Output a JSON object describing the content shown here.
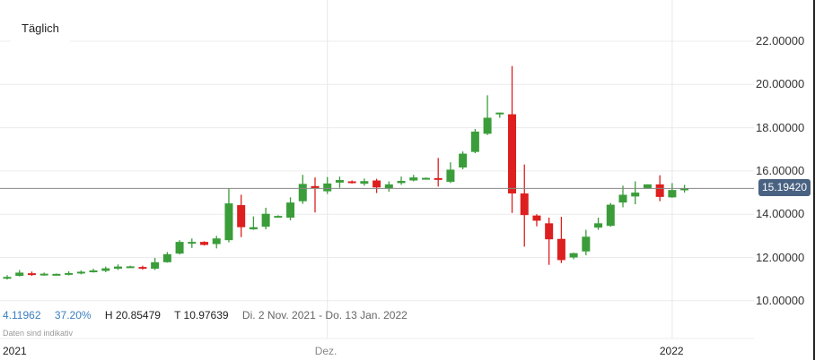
{
  "header": {
    "interval_tab": "Täglich"
  },
  "stats": {
    "change": "4.11962",
    "change_pct": "37.20%",
    "high": "H 20.85479",
    "low": "T 10.97639",
    "range": "Di. 2 Nov. 2021 - Do. 13 Jan. 2022",
    "disclaimer": "Daten sind indikativ"
  },
  "current_price": "15.19420",
  "colors": {
    "up": "#3a9d3a",
    "down": "#dd1f1f",
    "price_tag": "#4a6282",
    "stats_blue": "#3a7fc1"
  },
  "chart_data": {
    "type": "candlestick",
    "title": "",
    "xlabel": "",
    "ylabel": "",
    "ylim": [
      9.2,
      23
    ],
    "grid": true,
    "y_ticks": [
      "22.00000",
      "20.00000",
      "18.00000",
      "16.00000",
      "14.00000",
      "12.00000",
      "10.00000"
    ],
    "y_tick_values": [
      22,
      20,
      18,
      16,
      14,
      12,
      10
    ],
    "x_ticks": [
      {
        "label": "2021",
        "index": 0
      },
      {
        "label": "Dez.",
        "index": 26
      },
      {
        "label": "2022",
        "index": 54
      }
    ],
    "current_price": 15.1942,
    "period_high": 20.85479,
    "period_low": 10.97639,
    "candles": [
      {
        "o": 11.05,
        "c": 11.1,
        "h": 11.18,
        "l": 10.98
      },
      {
        "o": 11.15,
        "c": 11.3,
        "h": 11.42,
        "l": 11.12
      },
      {
        "o": 11.27,
        "c": 11.22,
        "h": 11.35,
        "l": 11.15
      },
      {
        "o": 11.2,
        "c": 11.25,
        "h": 11.3,
        "l": 11.16
      },
      {
        "o": 11.22,
        "c": 11.24,
        "h": 11.26,
        "l": 11.2
      },
      {
        "o": 11.22,
        "c": 11.28,
        "h": 11.36,
        "l": 11.17
      },
      {
        "o": 11.26,
        "c": 11.34,
        "h": 11.4,
        "l": 11.22
      },
      {
        "o": 11.33,
        "c": 11.4,
        "h": 11.48,
        "l": 11.3
      },
      {
        "o": 11.38,
        "c": 11.5,
        "h": 11.58,
        "l": 11.32
      },
      {
        "o": 11.48,
        "c": 11.58,
        "h": 11.68,
        "l": 11.42
      },
      {
        "o": 11.56,
        "c": 11.59,
        "h": 11.62,
        "l": 11.54
      },
      {
        "o": 11.56,
        "c": 11.5,
        "h": 11.62,
        "l": 11.44
      },
      {
        "o": 11.48,
        "c": 11.78,
        "h": 11.98,
        "l": 11.42
      },
      {
        "o": 11.78,
        "c": 12.15,
        "h": 12.25,
        "l": 11.76
      },
      {
        "o": 12.18,
        "c": 12.72,
        "h": 12.8,
        "l": 12.14
      },
      {
        "o": 12.7,
        "c": 12.72,
        "h": 12.88,
        "l": 12.44
      },
      {
        "o": 12.72,
        "c": 12.58,
        "h": 12.75,
        "l": 12.55
      },
      {
        "o": 12.62,
        "c": 12.88,
        "h": 13.0,
        "l": 12.42
      },
      {
        "o": 12.8,
        "c": 14.5,
        "h": 15.2,
        "l": 12.7
      },
      {
        "o": 14.42,
        "c": 13.4,
        "h": 14.9,
        "l": 12.94
      },
      {
        "o": 13.3,
        "c": 13.4,
        "h": 13.9,
        "l": 13.28
      },
      {
        "o": 13.42,
        "c": 14.02,
        "h": 14.3,
        "l": 13.3
      },
      {
        "o": 13.9,
        "c": 13.92,
        "h": 13.95,
        "l": 13.88
      },
      {
        "o": 13.84,
        "c": 14.54,
        "h": 14.78,
        "l": 13.72
      },
      {
        "o": 14.6,
        "c": 15.4,
        "h": 15.82,
        "l": 14.48
      },
      {
        "o": 15.3,
        "c": 15.2,
        "h": 15.7,
        "l": 14.08
      },
      {
        "o": 15.06,
        "c": 15.42,
        "h": 15.72,
        "l": 14.94
      },
      {
        "o": 15.46,
        "c": 15.58,
        "h": 15.74,
        "l": 15.22
      },
      {
        "o": 15.52,
        "c": 15.48,
        "h": 15.56,
        "l": 15.42
      },
      {
        "o": 15.41,
        "c": 15.53,
        "h": 15.65,
        "l": 15.32
      },
      {
        "o": 15.56,
        "c": 15.24,
        "h": 15.64,
        "l": 14.98
      },
      {
        "o": 15.18,
        "c": 15.38,
        "h": 15.52,
        "l": 15.04
      },
      {
        "o": 15.44,
        "c": 15.54,
        "h": 15.74,
        "l": 15.36
      },
      {
        "o": 15.56,
        "c": 15.7,
        "h": 15.82,
        "l": 15.52
      },
      {
        "o": 15.66,
        "c": 15.68,
        "h": 15.7,
        "l": 15.64
      },
      {
        "o": 15.67,
        "c": 15.65,
        "h": 16.6,
        "l": 15.28
      },
      {
        "o": 15.5,
        "c": 16.06,
        "h": 16.4,
        "l": 15.44
      },
      {
        "o": 16.16,
        "c": 16.8,
        "h": 16.9,
        "l": 16.08
      },
      {
        "o": 16.88,
        "c": 17.82,
        "h": 17.94,
        "l": 16.82
      },
      {
        "o": 17.72,
        "c": 18.46,
        "h": 19.5,
        "l": 17.66
      },
      {
        "o": 18.66,
        "c": 18.7,
        "h": 18.7,
        "l": 18.46
      },
      {
        "o": 18.62,
        "c": 14.96,
        "h": 20.85,
        "l": 14.06
      },
      {
        "o": 14.96,
        "c": 13.96,
        "h": 16.3,
        "l": 12.5
      },
      {
        "o": 13.94,
        "c": 13.7,
        "h": 14.0,
        "l": 13.44
      },
      {
        "o": 13.58,
        "c": 12.84,
        "h": 13.84,
        "l": 11.66
      },
      {
        "o": 12.86,
        "c": 11.88,
        "h": 13.88,
        "l": 11.74
      },
      {
        "o": 12.0,
        "c": 12.2,
        "h": 12.22,
        "l": 11.92
      },
      {
        "o": 12.28,
        "c": 12.96,
        "h": 13.28,
        "l": 12.1
      },
      {
        "o": 13.38,
        "c": 13.58,
        "h": 13.84,
        "l": 13.28
      },
      {
        "o": 13.46,
        "c": 14.44,
        "h": 14.52,
        "l": 13.42
      },
      {
        "o": 14.54,
        "c": 14.9,
        "h": 15.32,
        "l": 14.32
      },
      {
        "o": 14.82,
        "c": 15.0,
        "h": 15.52,
        "l": 14.46
      },
      {
        "o": 15.18,
        "c": 15.38,
        "h": 15.38,
        "l": 15.18
      },
      {
        "o": 15.38,
        "c": 14.8,
        "h": 15.8,
        "l": 14.6
      },
      {
        "o": 14.78,
        "c": 15.12,
        "h": 15.44,
        "l": 14.76
      },
      {
        "o": 15.12,
        "c": 15.19,
        "h": 15.36,
        "l": 15.0
      }
    ]
  }
}
